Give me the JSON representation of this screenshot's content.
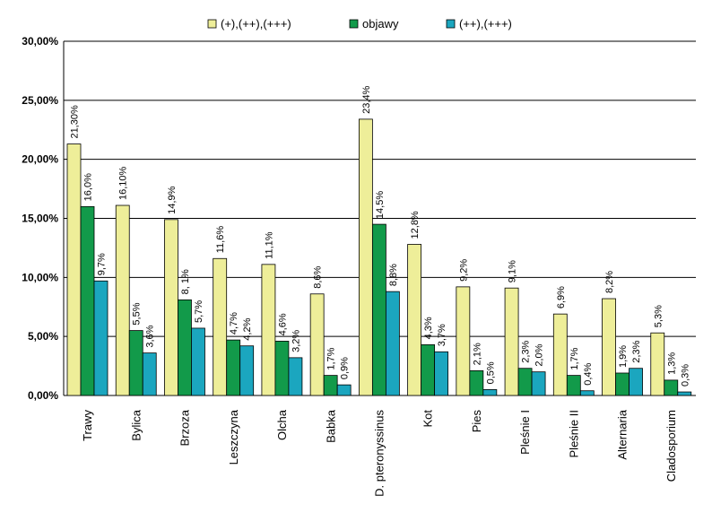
{
  "chart_data": {
    "type": "bar",
    "categories": [
      "Trawy",
      "Bylica",
      "Brzoza",
      "Leszczyna",
      "Olcha",
      "Babka",
      "D. pteronyssinus",
      "Kot",
      "Pies",
      "Pleśnie I",
      "Pleśnie II",
      "Alternaria",
      "Cladosporium"
    ],
    "series": [
      {
        "name": "(+),(++),(+++)",
        "color": "#eeee99",
        "values": [
          21.3,
          16.1,
          14.9,
          11.6,
          11.1,
          8.6,
          23.4,
          12.8,
          9.2,
          9.1,
          6.9,
          8.2,
          5.3
        ],
        "labels": [
          "21,30%",
          "16,10%",
          "14,9%",
          "11,6%",
          "11,1%",
          "8,6%",
          "23,4%",
          "12,8%",
          "9,2%",
          "9,1%",
          "6,9%",
          "8,2%",
          "5,3%"
        ]
      },
      {
        "name": "objawy",
        "color": "#129a4a",
        "values": [
          16.0,
          5.5,
          8.1,
          4.7,
          4.6,
          1.7,
          14.5,
          4.3,
          2.1,
          2.3,
          1.7,
          1.9,
          1.3
        ],
        "labels": [
          "16,0%",
          "5,5%",
          "8, 1%",
          "4,7%",
          "4,6%",
          "1,7%",
          "14,5%",
          "4,3%",
          "2,1%",
          "2,3%",
          "1,7%",
          "1,9%",
          "1,3%"
        ]
      },
      {
        "name": "(++),(+++)",
        "color": "#1ba6bf",
        "values": [
          9.7,
          3.6,
          5.7,
          4.2,
          3.2,
          0.9,
          8.8,
          3.7,
          0.5,
          2.0,
          0.4,
          2.3,
          0.3
        ],
        "labels": [
          "9,7%",
          "3,6%",
          "5,7%",
          "4,2%",
          "3,2%",
          "0,9%",
          "8,8%",
          "3,7%",
          "0,5%",
          "2,0%",
          "0,4%",
          "2,3%",
          "0,3%"
        ]
      }
    ],
    "ylim": [
      0,
      30
    ],
    "yticks": [
      "0,00%",
      "5,00%",
      "10,00%",
      "15,00%",
      "20,00%",
      "25,00%",
      "30,00%"
    ],
    "grid": true,
    "legend": "top",
    "title": "",
    "xlabel": "",
    "ylabel": ""
  }
}
